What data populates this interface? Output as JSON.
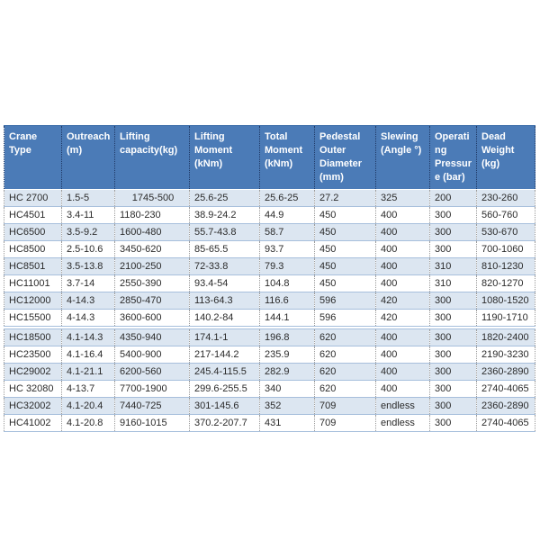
{
  "chart_data": {
    "type": "table",
    "title": "",
    "columns": [
      "Crane Type",
      "Outreach (m)",
      "Lifting capacity(kg)",
      "Lifting Moment (kNm)",
      "Total Moment (kNm)",
      "Pedestal Outer Diameter (mm)",
      "Slewing (Angle °)",
      "Operating Pressure (bar)",
      "Dead Weight (kg)"
    ],
    "rows": [
      [
        "HC 2700",
        "1.5-5",
        "1745-500",
        "25.6-25",
        "25.6-25",
        "27.2",
        "325",
        "200",
        "230-260"
      ],
      [
        "HC4501",
        "3.4-11",
        "1180-230",
        "38.9-24.2",
        "44.9",
        "450",
        "400",
        "300",
        "560-760"
      ],
      [
        "HC6500",
        "3.5-9.2",
        "1600-480",
        "55.7-43.8",
        "58.7",
        "450",
        "400",
        "300",
        "530-670"
      ],
      [
        "HC8500",
        "2.5-10.6",
        "3450-620",
        "85-65.5",
        "93.7",
        "450",
        "400",
        "300",
        "700-1060"
      ],
      [
        "HC8501",
        "3.5-13.8",
        "2100-250",
        "72-33.8",
        "79.3",
        "450",
        "400",
        "310",
        "810-1230"
      ],
      [
        "HC11001",
        "3.7-14",
        "2550-390",
        "93.4-54",
        "104.8",
        "450",
        "400",
        "310",
        "820-1270"
      ],
      [
        "HC12000",
        "4-14.3",
        "2850-470",
        "113-64.3",
        "116.6",
        "596",
        "420",
        "300",
        "1080-1520"
      ],
      [
        "HC15500",
        "4-14.3",
        "3600-600",
        "140.2-84",
        "144.1",
        "596",
        "420",
        "300",
        "1190-1710"
      ],
      [
        "HC18500",
        "4.1-14.3",
        "4350-940",
        "174.1-1",
        "196.8",
        "620",
        "400",
        "300",
        "1820-2400"
      ],
      [
        "HC23500",
        "4.1-16.4",
        "5400-900",
        "217-144.2",
        "235.9",
        "620",
        "400",
        "300",
        "2190-3230"
      ],
      [
        "HC29002",
        "4.1-21.1",
        "6200-560",
        "245.4-115.5",
        "282.9",
        "620",
        "400",
        "300",
        "2360-2890"
      ],
      [
        "HC 32080",
        "4-13.7",
        "7700-1900",
        "299.6-255.5",
        "340",
        "620",
        "400",
        "300",
        "2740-4065"
      ],
      [
        "HC32002",
        "4.1-20.4",
        "7440-725",
        "301-145.6",
        "352",
        "709",
        "endless",
        "300",
        "2360-2890"
      ],
      [
        "HC41002",
        "4.1-20.8",
        "9160-1015",
        "370.2-207.7",
        "431",
        "709",
        "endless",
        "300",
        "2740-4065"
      ]
    ]
  },
  "colors": {
    "header_bg": "#4b7bb7",
    "header_text": "#ffffff",
    "header_divider": "#1f3864",
    "row_bg": "#ffffff",
    "row_alt_bg": "#dce6f1",
    "row_border": "#a7bfdc",
    "cell_divider": "#9a9a9a",
    "body_text": "#2b2b2b"
  }
}
